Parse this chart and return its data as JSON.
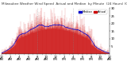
{
  "n_points": 1440,
  "seed": 42,
  "background_color": "#ffffff",
  "bar_color": "#cc0000",
  "median_color": "#0000cc",
  "ylim": [
    0,
    30
  ],
  "yticks": [
    5,
    10,
    15,
    20,
    25,
    30
  ],
  "vline_positions": [
    480,
    960
  ],
  "vline_color": "#888888",
  "legend_actual_color": "#cc0000",
  "legend_median_color": "#0000cc",
  "title_fontsize": 3.0,
  "tick_fontsize": 2.8,
  "legend_fontsize": 2.5
}
